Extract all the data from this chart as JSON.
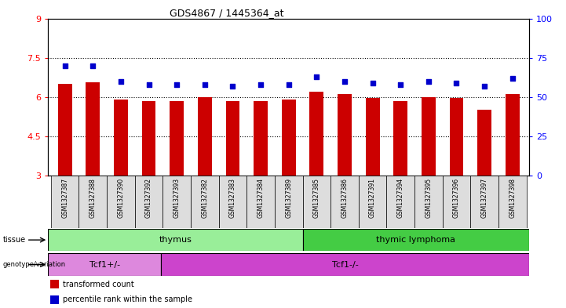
{
  "title": "GDS4867 / 1445364_at",
  "samples": [
    "GSM1327387",
    "GSM1327388",
    "GSM1327390",
    "GSM1327392",
    "GSM1327393",
    "GSM1327382",
    "GSM1327383",
    "GSM1327384",
    "GSM1327389",
    "GSM1327385",
    "GSM1327386",
    "GSM1327391",
    "GSM1327394",
    "GSM1327395",
    "GSM1327396",
    "GSM1327397",
    "GSM1327398"
  ],
  "bar_values": [
    6.5,
    6.55,
    5.9,
    5.85,
    5.85,
    6.0,
    5.85,
    5.85,
    5.9,
    6.2,
    6.1,
    5.95,
    5.85,
    6.0,
    5.95,
    5.5,
    6.1
  ],
  "dot_values": [
    70,
    70,
    60,
    58,
    58,
    58,
    57,
    58,
    58,
    63,
    60,
    59,
    58,
    60,
    59,
    57,
    62
  ],
  "ylim_left": [
    3,
    9
  ],
  "ylim_right": [
    0,
    100
  ],
  "yticks_left": [
    3,
    4.5,
    6,
    7.5,
    9
  ],
  "yticks_right": [
    0,
    25,
    50,
    75,
    100
  ],
  "hlines": [
    4.5,
    6.0,
    7.5
  ],
  "bar_color": "#cc0000",
  "dot_color": "#0000cc",
  "plot_bg": "#ffffff",
  "tissue_groups": [
    {
      "label": "thymus",
      "start": 0,
      "end": 9,
      "color": "#99ee99"
    },
    {
      "label": "thymic lymphoma",
      "start": 9,
      "end": 17,
      "color": "#44cc44"
    }
  ],
  "genotype_groups": [
    {
      "label": "Tcf1+/-",
      "start": 0,
      "end": 4,
      "color": "#dd88dd"
    },
    {
      "label": "Tcf1-/-",
      "start": 4,
      "end": 17,
      "color": "#cc44cc"
    }
  ],
  "legend_items": [
    {
      "color": "#cc0000",
      "label": "transformed count"
    },
    {
      "color": "#0000cc",
      "label": "percentile rank within the sample"
    }
  ]
}
